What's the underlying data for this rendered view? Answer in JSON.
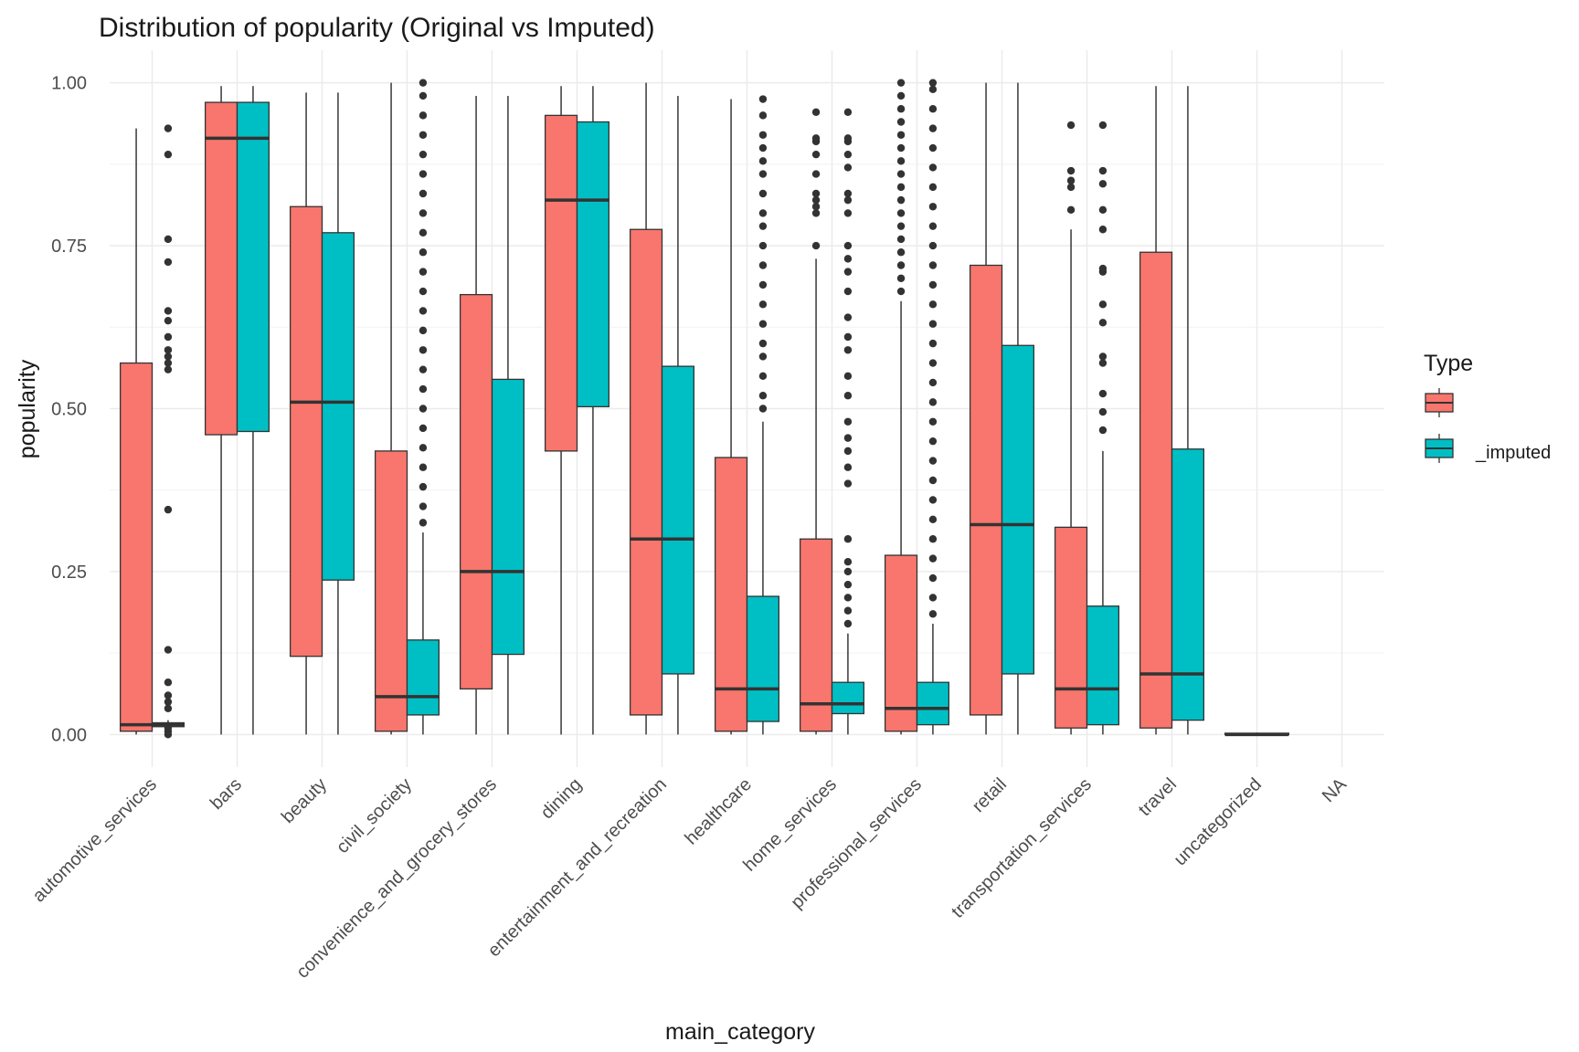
{
  "chart_data": {
    "type": "boxplot",
    "title": "Distribution of popularity (Original vs Imputed)",
    "xlabel": "main_category",
    "ylabel": "popularity",
    "ylim": [
      -0.05,
      1.05
    ],
    "yticks": [
      0.0,
      0.25,
      0.5,
      0.75,
      1.0
    ],
    "ytick_labels": [
      "0.00",
      "0.25",
      "0.50",
      "0.75",
      "1.00"
    ],
    "grid": true,
    "legend": {
      "title": "Type",
      "position": "right",
      "entries": [
        {
          "label": "",
          "color": "#F8766D"
        },
        {
          "label": "_imputed",
          "color": "#00BFC4"
        }
      ]
    },
    "categories": [
      "automotive_services",
      "bars",
      "beauty",
      "civil_society",
      "convenience_and_grocery_stores",
      "dining",
      "entertainment_and_recreation",
      "healthcare",
      "home_services",
      "professional_services",
      "retail",
      "transportation_services",
      "travel",
      "uncategorized",
      "NA"
    ],
    "series": [
      {
        "name": "",
        "color": "#F8766D",
        "boxes": [
          {
            "min": 0.0,
            "q1": 0.005,
            "median": 0.015,
            "q3": 0.57,
            "max": 0.93,
            "outliers": []
          },
          {
            "min": 0.0,
            "q1": 0.46,
            "median": 0.915,
            "q3": 0.97,
            "max": 0.995,
            "outliers": []
          },
          {
            "min": 0.0,
            "q1": 0.12,
            "median": 0.51,
            "q3": 0.81,
            "max": 0.985,
            "outliers": []
          },
          {
            "min": 0.0,
            "q1": 0.005,
            "median": 0.058,
            "q3": 0.435,
            "max": 1.0,
            "outliers": []
          },
          {
            "min": 0.0,
            "q1": 0.07,
            "median": 0.25,
            "q3": 0.675,
            "max": 0.98,
            "outliers": []
          },
          {
            "min": 0.0,
            "q1": 0.435,
            "median": 0.82,
            "q3": 0.95,
            "max": 0.995,
            "outliers": []
          },
          {
            "min": 0.0,
            "q1": 0.03,
            "median": 0.3,
            "q3": 0.775,
            "max": 1.0,
            "outliers": []
          },
          {
            "min": 0.0,
            "q1": 0.005,
            "median": 0.07,
            "q3": 0.425,
            "max": 0.975,
            "outliers": []
          },
          {
            "min": 0.0,
            "q1": 0.005,
            "median": 0.047,
            "q3": 0.3,
            "max": 0.73,
            "outliers": [
              0.75,
              0.8,
              0.81,
              0.82,
              0.83,
              0.86,
              0.89,
              0.91,
              0.915,
              0.955
            ]
          },
          {
            "min": 0.0,
            "q1": 0.005,
            "median": 0.04,
            "q3": 0.275,
            "max": 0.665,
            "outliers": [
              0.68,
              0.7,
              0.72,
              0.74,
              0.76,
              0.78,
              0.8,
              0.82,
              0.84,
              0.86,
              0.88,
              0.9,
              0.92,
              0.94,
              0.96,
              0.98,
              1.0
            ]
          },
          {
            "min": 0.0,
            "q1": 0.03,
            "median": 0.322,
            "q3": 0.72,
            "max": 1.0,
            "outliers": []
          },
          {
            "min": 0.0,
            "q1": 0.01,
            "median": 0.07,
            "q3": 0.318,
            "max": 0.775,
            "outliers": [
              0.805,
              0.84,
              0.85,
              0.865,
              0.935
            ]
          },
          {
            "min": 0.0,
            "q1": 0.01,
            "median": 0.093,
            "q3": 0.74,
            "max": 0.995,
            "outliers": []
          },
          {
            "min": 0.0,
            "q1": 0.0,
            "median": 0.0,
            "q3": 0.002,
            "max": 0.002,
            "outliers": []
          },
          null
        ]
      },
      {
        "name": "_imputed",
        "color": "#00BFC4",
        "boxes": [
          {
            "min": 0.0,
            "q1": 0.012,
            "median": 0.015,
            "q3": 0.018,
            "max": 0.022,
            "outliers": [
              0.0,
              0.005,
              0.01,
              0.04,
              0.05,
              0.06,
              0.08,
              0.13,
              0.345,
              0.56,
              0.57,
              0.58,
              0.59,
              0.61,
              0.635,
              0.65,
              0.725,
              0.76,
              0.89,
              0.93
            ]
          },
          {
            "min": 0.0,
            "q1": 0.465,
            "median": 0.915,
            "q3": 0.97,
            "max": 0.995,
            "outliers": []
          },
          {
            "min": 0.0,
            "q1": 0.237,
            "median": 0.51,
            "q3": 0.77,
            "max": 0.985,
            "outliers": []
          },
          {
            "min": 0.0,
            "q1": 0.03,
            "median": 0.058,
            "q3": 0.145,
            "max": 0.31,
            "outliers": [
              0.325,
              0.35,
              0.38,
              0.41,
              0.44,
              0.47,
              0.5,
              0.53,
              0.56,
              0.59,
              0.62,
              0.65,
              0.68,
              0.71,
              0.74,
              0.77,
              0.8,
              0.83,
              0.86,
              0.89,
              0.92,
              0.95,
              0.98,
              1.0
            ]
          },
          {
            "min": 0.0,
            "q1": 0.123,
            "median": 0.25,
            "q3": 0.545,
            "max": 0.98,
            "outliers": []
          },
          {
            "min": 0.0,
            "q1": 0.503,
            "median": 0.82,
            "q3": 0.94,
            "max": 0.995,
            "outliers": []
          },
          {
            "min": 0.0,
            "q1": 0.093,
            "median": 0.3,
            "q3": 0.565,
            "max": 0.98,
            "outliers": []
          },
          {
            "min": 0.0,
            "q1": 0.02,
            "median": 0.07,
            "q3": 0.212,
            "max": 0.48,
            "outliers": [
              0.5,
              0.52,
              0.55,
              0.58,
              0.6,
              0.63,
              0.66,
              0.69,
              0.72,
              0.75,
              0.78,
              0.8,
              0.83,
              0.86,
              0.88,
              0.9,
              0.92,
              0.95,
              0.975
            ]
          },
          {
            "min": 0.0,
            "q1": 0.032,
            "median": 0.047,
            "q3": 0.08,
            "max": 0.155,
            "outliers": [
              0.17,
              0.19,
              0.21,
              0.23,
              0.25,
              0.265,
              0.3,
              0.385,
              0.41,
              0.435,
              0.455,
              0.48,
              0.52,
              0.55,
              0.59,
              0.61,
              0.64,
              0.68,
              0.71,
              0.73,
              0.75,
              0.8,
              0.82,
              0.83,
              0.87,
              0.89,
              0.91,
              0.915,
              0.955
            ]
          },
          {
            "min": 0.0,
            "q1": 0.015,
            "median": 0.04,
            "q3": 0.08,
            "max": 0.17,
            "outliers": [
              0.185,
              0.21,
              0.24,
              0.27,
              0.3,
              0.33,
              0.36,
              0.39,
              0.42,
              0.45,
              0.48,
              0.51,
              0.54,
              0.57,
              0.6,
              0.63,
              0.66,
              0.69,
              0.72,
              0.75,
              0.78,
              0.81,
              0.84,
              0.87,
              0.9,
              0.93,
              0.96,
              0.99,
              1.0
            ]
          },
          {
            "min": 0.0,
            "q1": 0.093,
            "median": 0.322,
            "q3": 0.597,
            "max": 1.0,
            "outliers": []
          },
          {
            "min": 0.0,
            "q1": 0.015,
            "median": 0.07,
            "q3": 0.197,
            "max": 0.435,
            "outliers": [
              0.467,
              0.495,
              0.523,
              0.57,
              0.58,
              0.632,
              0.66,
              0.71,
              0.715,
              0.775,
              0.805,
              0.845,
              0.865,
              0.935
            ]
          },
          {
            "min": 0.0,
            "q1": 0.022,
            "median": 0.093,
            "q3": 0.438,
            "max": 0.995,
            "outliers": []
          },
          {
            "min": 0.0,
            "q1": 0.0,
            "median": 0.0,
            "q3": 0.002,
            "max": 0.002,
            "outliers": []
          },
          null
        ]
      }
    ]
  }
}
